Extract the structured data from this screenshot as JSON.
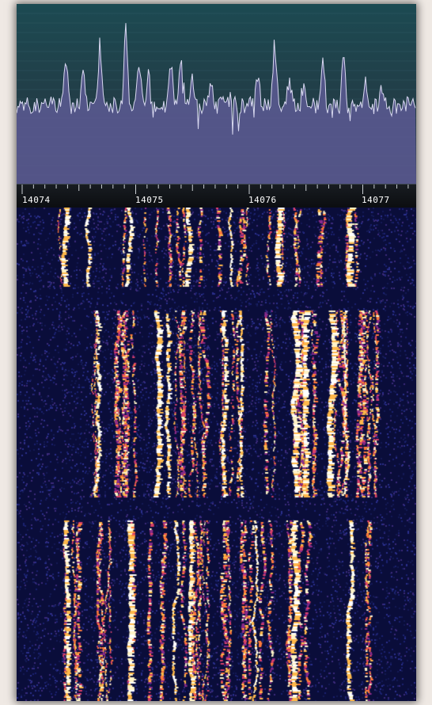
{
  "spectrum_display": {
    "colors": {
      "background_top": "#1c4a52",
      "background_bottom": "#27323e",
      "grid": "#3e6872",
      "fill": "#5c5a94",
      "trace": "#d8d8f0"
    }
  },
  "frequency_scale": {
    "labels": [
      "14074",
      "14075",
      "14076",
      "14077"
    ]
  },
  "waterfall": {
    "colors": {
      "background": "#0a0d3a",
      "noise": [
        "#141a55",
        "#1b2270",
        "#2a2f8c",
        "#3a2a7a"
      ],
      "signal": [
        "#ffffff",
        "#fff3c8",
        "#ffb84a",
        "#ff7a3a",
        "#d9406a",
        "#8a2a8a"
      ]
    }
  }
}
